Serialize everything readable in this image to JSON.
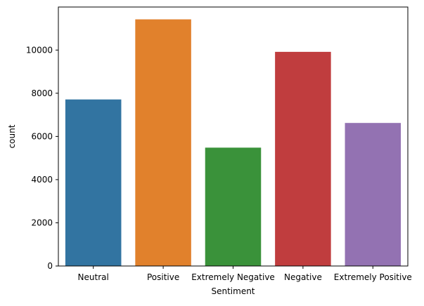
{
  "chart_data": {
    "type": "bar",
    "title": "",
    "xlabel": "Sentiment",
    "ylabel": "count",
    "categories": [
      "Neutral",
      "Positive",
      "Extremely Negative",
      "Negative",
      "Extremely Positive"
    ],
    "values": [
      7713,
      11422,
      5481,
      9917,
      6624
    ],
    "colors": [
      "#3274a1",
      "#e1812c",
      "#3a923a",
      "#c03d3e",
      "#9372b2"
    ],
    "yticks": [
      0,
      2000,
      4000,
      6000,
      8000,
      10000
    ],
    "ylim": [
      0,
      11993
    ],
    "grid": false,
    "legend": "none"
  }
}
